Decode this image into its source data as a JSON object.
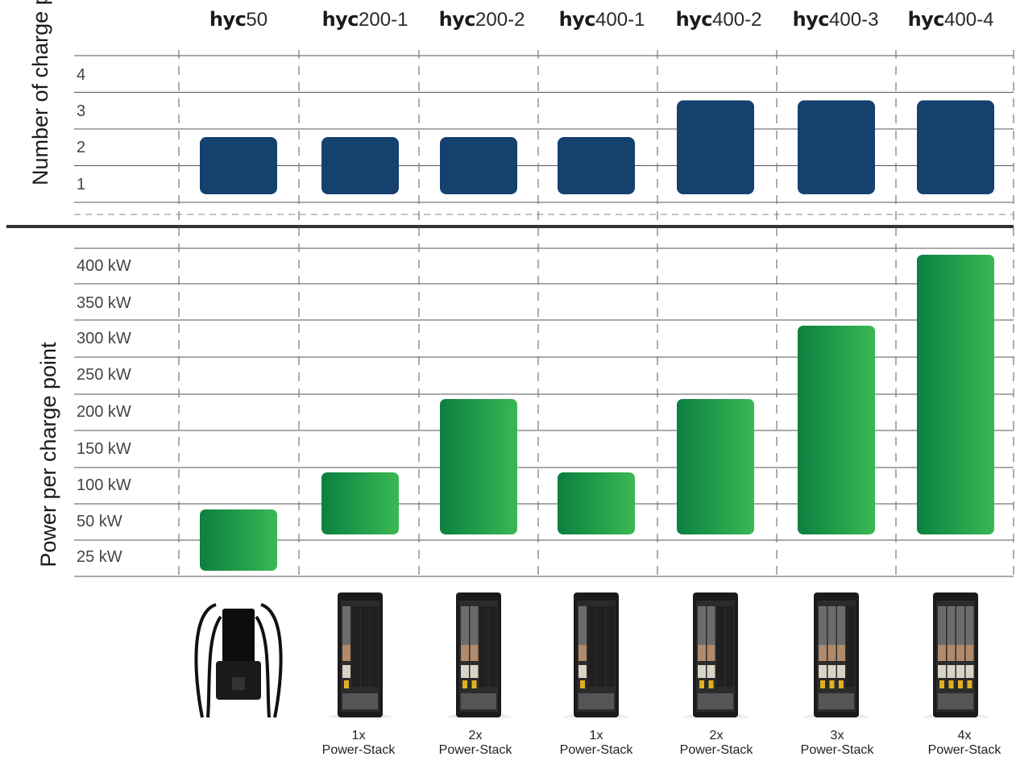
{
  "colors": {
    "top_bar": "#14416e",
    "bottom_bar_dark": "#0b8040",
    "bottom_bar_light": "#3ab854",
    "grid_line": "#555555",
    "divider": "#333333"
  },
  "columns": [
    {
      "brand": "hyc",
      "model": "50",
      "caption_count": "",
      "caption_unit": "",
      "device_icon": "wallbox-charger-icon"
    },
    {
      "brand": "hyc",
      "model": "200-1",
      "caption_count": "1x",
      "caption_unit": "Power-Stack",
      "device_icon": "power-cabinet-icon"
    },
    {
      "brand": "hyc",
      "model": "200-2",
      "caption_count": "2x",
      "caption_unit": "Power-Stack",
      "device_icon": "power-cabinet-icon"
    },
    {
      "brand": "hyc",
      "model": "400-1",
      "caption_count": "1x",
      "caption_unit": "Power-Stack",
      "device_icon": "power-cabinet-icon"
    },
    {
      "brand": "hyc",
      "model": "400-2",
      "caption_count": "2x",
      "caption_unit": "Power-Stack",
      "device_icon": "power-cabinet-icon"
    },
    {
      "brand": "hyc",
      "model": "400-3",
      "caption_count": "3x",
      "caption_unit": "Power-Stack",
      "device_icon": "power-cabinet-icon"
    },
    {
      "brand": "hyc",
      "model": "400-4",
      "caption_count": "4x",
      "caption_unit": "Power-Stack",
      "device_icon": "power-cabinet-icon"
    }
  ],
  "chart_data": [
    {
      "type": "bar",
      "title": "",
      "ylabel": "Number of charge points",
      "categories": [
        "hyc50",
        "hyc200-1",
        "hyc200-2",
        "hyc400-1",
        "hyc400-2",
        "hyc400-3",
        "hyc400-4"
      ],
      "ticks": [
        "1",
        "2",
        "3",
        "4"
      ],
      "ylim": [
        0.5,
        4.5
      ],
      "series": [
        {
          "values": [
            [
              1,
              2
            ],
            [
              1,
              2
            ],
            [
              1,
              2
            ],
            [
              1,
              2
            ],
            [
              1,
              3
            ],
            [
              1,
              3
            ],
            [
              1,
              3
            ]
          ]
        }
      ],
      "grid": true
    },
    {
      "type": "bar",
      "title": "",
      "ylabel": "Power per charge point",
      "categories": [
        "hyc50",
        "hyc200-1",
        "hyc200-2",
        "hyc400-1",
        "hyc400-2",
        "hyc400-3",
        "hyc400-4"
      ],
      "ticks": [
        "25 kW",
        "50 kW",
        "100 kW",
        "150 kW",
        "200 kW",
        "250 kW",
        "300 kW",
        "350 kW",
        "400 kW"
      ],
      "ylim": [
        0,
        425
      ],
      "series": [
        {
          "values": [
            [
              25,
              50
            ],
            [
              50,
              100
            ],
            [
              50,
              200
            ],
            [
              50,
              100
            ],
            [
              50,
              200
            ],
            [
              50,
              300
            ],
            [
              50,
              400
            ]
          ]
        }
      ],
      "grid": true
    }
  ]
}
